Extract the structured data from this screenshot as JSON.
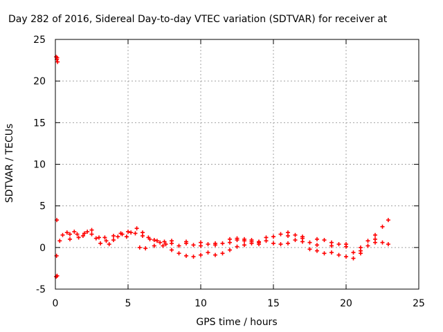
{
  "chart_data": {
    "type": "scatter",
    "title": "Day 282 of 2016, Sidereal Day-to-day VTEC variation (SDTVAR) for receiver at",
    "xlabel": "GPS time / hours",
    "ylabel": "SDTVAR / TECUs",
    "xlim": [
      0,
      25
    ],
    "ylim": [
      -5,
      25
    ],
    "xticks": [
      0,
      5,
      10,
      15,
      20,
      25
    ],
    "yticks": [
      -5,
      0,
      5,
      10,
      15,
      20,
      25
    ],
    "grid": true,
    "marker": "plus",
    "color": "#ff0000",
    "series": [
      {
        "points": [
          [
            0.05,
            22.9
          ],
          [
            0.1,
            22.6
          ],
          [
            0.15,
            22.3
          ],
          [
            0.12,
            22.8
          ],
          [
            0.1,
            3.3
          ],
          [
            0.08,
            -1.0
          ],
          [
            0.12,
            -3.4
          ],
          [
            0.05,
            -3.5
          ],
          [
            0.3,
            0.8
          ],
          [
            0.5,
            1.5
          ],
          [
            0.8,
            1.8
          ],
          [
            1.0,
            1.6
          ],
          [
            1.3,
            1.9
          ],
          [
            1.6,
            1.2
          ],
          [
            1.9,
            1.4
          ],
          [
            2.2,
            1.9
          ],
          [
            2.5,
            2.1
          ],
          [
            2.8,
            1.1
          ],
          [
            3.1,
            0.5
          ],
          [
            3.4,
            1.2
          ],
          [
            3.7,
            0.4
          ],
          [
            4.0,
            0.9
          ],
          [
            4.3,
            1.3
          ],
          [
            4.6,
            1.6
          ],
          [
            4.9,
            1.3
          ],
          [
            5.2,
            1.8
          ],
          [
            5.6,
            2.3
          ],
          [
            6.0,
            1.8
          ],
          [
            6.4,
            1.2
          ],
          [
            6.8,
            0.9
          ],
          [
            7.2,
            0.6
          ],
          [
            7.6,
            0.4
          ],
          [
            8.0,
            0.5
          ],
          [
            8.5,
            0.2
          ],
          [
            9.0,
            0.5
          ],
          [
            9.5,
            0.3
          ],
          [
            10.0,
            0.2
          ],
          [
            10.5,
            0.4
          ],
          [
            11.0,
            0.3
          ],
          [
            11.5,
            0.5
          ],
          [
            12.0,
            0.6
          ],
          [
            12.5,
            0.9
          ],
          [
            13.0,
            0.8
          ],
          [
            13.5,
            0.9
          ],
          [
            14.0,
            0.7
          ],
          [
            14.5,
            1.2
          ],
          [
            15.0,
            1.3
          ],
          [
            15.5,
            1.6
          ],
          [
            16.0,
            1.4
          ],
          [
            16.5,
            1.5
          ],
          [
            17.0,
            1.1
          ],
          [
            17.5,
            0.6
          ],
          [
            18.0,
            0.3
          ],
          [
            18.5,
            0.9
          ],
          [
            19.0,
            0.6
          ],
          [
            19.5,
            0.4
          ],
          [
            20.0,
            0.1
          ],
          [
            20.5,
            -0.6
          ],
          [
            21.0,
            0.0
          ],
          [
            21.5,
            0.8
          ],
          [
            22.0,
            1.5
          ],
          [
            22.5,
            2.5
          ],
          [
            22.9,
            3.3
          ],
          [
            5.8,
            0.0
          ],
          [
            6.2,
            -0.1
          ],
          [
            6.8,
            0.2
          ],
          [
            7.4,
            0.2
          ],
          [
            8.0,
            -0.3
          ],
          [
            8.5,
            -0.7
          ],
          [
            9.0,
            -1.0
          ],
          [
            9.5,
            -1.1
          ],
          [
            10.0,
            -0.9
          ],
          [
            10.5,
            -0.6
          ],
          [
            11.0,
            -0.9
          ],
          [
            11.5,
            -0.7
          ],
          [
            12.0,
            -0.3
          ],
          [
            12.5,
            0.1
          ],
          [
            13.0,
            0.3
          ],
          [
            13.5,
            0.5
          ],
          [
            14.0,
            0.6
          ],
          [
            14.5,
            0.8
          ],
          [
            15.0,
            0.5
          ],
          [
            15.5,
            0.4
          ],
          [
            16.0,
            0.5
          ],
          [
            16.5,
            0.9
          ],
          [
            17.0,
            0.7
          ],
          [
            17.5,
            -0.2
          ],
          [
            18.0,
            -0.4
          ],
          [
            18.5,
            -0.7
          ],
          [
            19.0,
            -0.6
          ],
          [
            19.5,
            -0.9
          ],
          [
            20.0,
            -1.1
          ],
          [
            20.5,
            -1.3
          ],
          [
            21.0,
            -0.7
          ],
          [
            21.5,
            0.2
          ],
          [
            22.0,
            0.6
          ],
          [
            22.5,
            0.6
          ],
          [
            22.9,
            0.4
          ],
          [
            1.0,
            1.0
          ],
          [
            1.5,
            1.6
          ],
          [
            2.0,
            1.7
          ],
          [
            2.5,
            1.6
          ],
          [
            3.0,
            1.2
          ],
          [
            3.5,
            0.8
          ],
          [
            4.0,
            1.4
          ],
          [
            4.5,
            1.7
          ],
          [
            5.0,
            1.9
          ],
          [
            5.5,
            1.7
          ],
          [
            6.0,
            1.4
          ],
          [
            6.5,
            1.0
          ],
          [
            7.0,
            0.8
          ],
          [
            7.5,
            0.7
          ],
          [
            8.0,
            0.8
          ],
          [
            9.0,
            0.7
          ],
          [
            10.0,
            0.6
          ],
          [
            11.0,
            0.5
          ],
          [
            12.0,
            1.0
          ],
          [
            12.5,
            1.1
          ],
          [
            13.0,
            1.0
          ],
          [
            13.5,
            0.7
          ],
          [
            14.0,
            0.4
          ],
          [
            16.0,
            1.8
          ],
          [
            17.0,
            1.3
          ],
          [
            18.0,
            1.0
          ],
          [
            19.0,
            0.2
          ],
          [
            20.0,
            0.4
          ],
          [
            21.0,
            -0.4
          ],
          [
            22.0,
            1.0
          ]
        ]
      }
    ]
  }
}
